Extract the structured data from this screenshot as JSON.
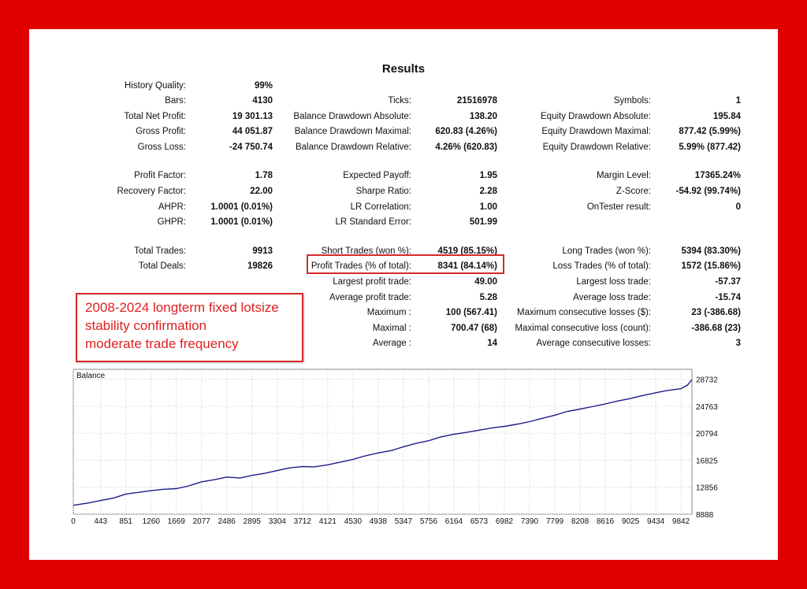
{
  "report": {
    "title": "Results",
    "rows": [
      {
        "c1": [
          "History Quality:",
          "99%"
        ],
        "c2": null,
        "c3": null
      },
      {
        "c1": [
          "Bars:",
          "4130"
        ],
        "c2": [
          "Ticks:",
          "21516978"
        ],
        "c3": [
          "Symbols:",
          "1"
        ]
      },
      {
        "c1": [
          "Total Net Profit:",
          "19 301.13"
        ],
        "c2": [
          "Balance Drawdown Absolute:",
          "138.20"
        ],
        "c3": [
          "Equity Drawdown Absolute:",
          "195.84"
        ]
      },
      {
        "c1": [
          "Gross Profit:",
          "44 051.87"
        ],
        "c2": [
          "Balance Drawdown Maximal:",
          "620.83 (4.26%)"
        ],
        "c3": [
          "Equity Drawdown Maximal:",
          "877.42 (5.99%)"
        ]
      },
      {
        "c1": [
          "Gross Loss:",
          "-24 750.74"
        ],
        "c2": [
          "Balance Drawdown Relative:",
          "4.26% (620.83)"
        ],
        "c3": [
          "Equity Drawdown Relative:",
          "5.99% (877.42)"
        ]
      },
      {
        "c1": [
          "Profit Factor:",
          "1.78"
        ],
        "c2": [
          "Expected Payoff:",
          "1.95"
        ],
        "c3": [
          "Margin Level:",
          "17365.24%"
        ]
      },
      {
        "c1": [
          "Recovery Factor:",
          "22.00"
        ],
        "c2": [
          "Sharpe Ratio:",
          "2.28"
        ],
        "c3": [
          "Z-Score:",
          "-54.92 (99.74%)"
        ]
      },
      {
        "c1": [
          "AHPR:",
          "1.0001 (0.01%)"
        ],
        "c2": [
          "LR Correlation:",
          "1.00"
        ],
        "c3": [
          "OnTester result:",
          "0"
        ]
      },
      {
        "c1": [
          "GHPR:",
          "1.0001 (0.01%)"
        ],
        "c2": [
          "LR Standard Error:",
          "501.99"
        ],
        "c3": null
      },
      {
        "c1": [
          "Total Trades:",
          "9913"
        ],
        "c2": [
          "Short Trades (won %):",
          "4519 (85.15%)"
        ],
        "c3": [
          "Long Trades (won %):",
          "5394 (83.30%)"
        ]
      },
      {
        "c1": [
          "Total Deals:",
          "19826"
        ],
        "c2": [
          "Profit Trades (% of total):",
          "8341 (84.14%)"
        ],
        "c3": [
          "Loss Trades (% of total):",
          "1572 (15.86%)"
        ]
      },
      {
        "c1": null,
        "c2": [
          "Largest profit trade:",
          "49.00"
        ],
        "c3": [
          "Largest loss trade:",
          "-57.37"
        ]
      },
      {
        "c1": null,
        "c2": [
          "Average profit trade:",
          "5.28"
        ],
        "c3": [
          "Average loss trade:",
          "-15.74"
        ]
      },
      {
        "c1": null,
        "c2": [
          "Maximum :",
          "100 (567.41)"
        ],
        "c3": [
          "Maximum consecutive losses ($):",
          "23 (-386.68)"
        ]
      },
      {
        "c1": null,
        "c2": [
          "Maximal :",
          "700.47 (68)"
        ],
        "c3": [
          "Maximal consecutive loss (count):",
          "-386.68 (23)"
        ]
      },
      {
        "c1": null,
        "c2": [
          "Average :",
          "14"
        ],
        "c3": [
          "Average consecutive losses:",
          "3"
        ]
      }
    ]
  },
  "note": {
    "lines": [
      "2008-2024 longterm fixed lotsize",
      "stability confirmation",
      "moderate trade frequency"
    ],
    "color": "#e02020"
  },
  "chart_data": {
    "type": "line",
    "title": "Balance",
    "xlabel": "",
    "ylabel": "",
    "x_ticks": [
      0,
      443,
      851,
      1260,
      1669,
      2077,
      2486,
      2895,
      3304,
      3712,
      4121,
      4530,
      4938,
      5347,
      5756,
      6164,
      6573,
      6982,
      7390,
      7799,
      8208,
      8616,
      9025,
      9434,
      9842
    ],
    "y_ticks": [
      8888,
      12856,
      16825,
      20794,
      24763,
      28732
    ],
    "xlim": [
      0,
      10020
    ],
    "ylim": [
      8888,
      30200
    ],
    "grid": true,
    "line_color": "#1c1c8c",
    "series": [
      {
        "name": "",
        "x": [
          0,
          250,
          443,
          650,
          851,
          1050,
          1260,
          1450,
          1669,
          1850,
          2077,
          2300,
          2486,
          2700,
          2895,
          3100,
          3304,
          3500,
          3712,
          3900,
          4121,
          4300,
          4530,
          4700,
          4938,
          5150,
          5347,
          5550,
          5756,
          5950,
          6164,
          6350,
          6573,
          6800,
          6982,
          7200,
          7390,
          7600,
          7799,
          8000,
          8208,
          8400,
          8616,
          8800,
          9025,
          9200,
          9434,
          9600,
          9842,
          9950,
          10020
        ],
        "values": [
          10200,
          10550,
          10900,
          11250,
          11850,
          12100,
          12350,
          12550,
          12650,
          13000,
          13650,
          14000,
          14350,
          14200,
          14600,
          14900,
          15300,
          15700,
          15900,
          15850,
          16150,
          16500,
          16950,
          17400,
          17900,
          18250,
          18800,
          19300,
          19700,
          20250,
          20650,
          20900,
          21250,
          21600,
          21800,
          22150,
          22500,
          23000,
          23450,
          24000,
          24350,
          24700,
          25100,
          25500,
          25900,
          26300,
          26750,
          27050,
          27350,
          27900,
          28700
        ]
      }
    ]
  }
}
